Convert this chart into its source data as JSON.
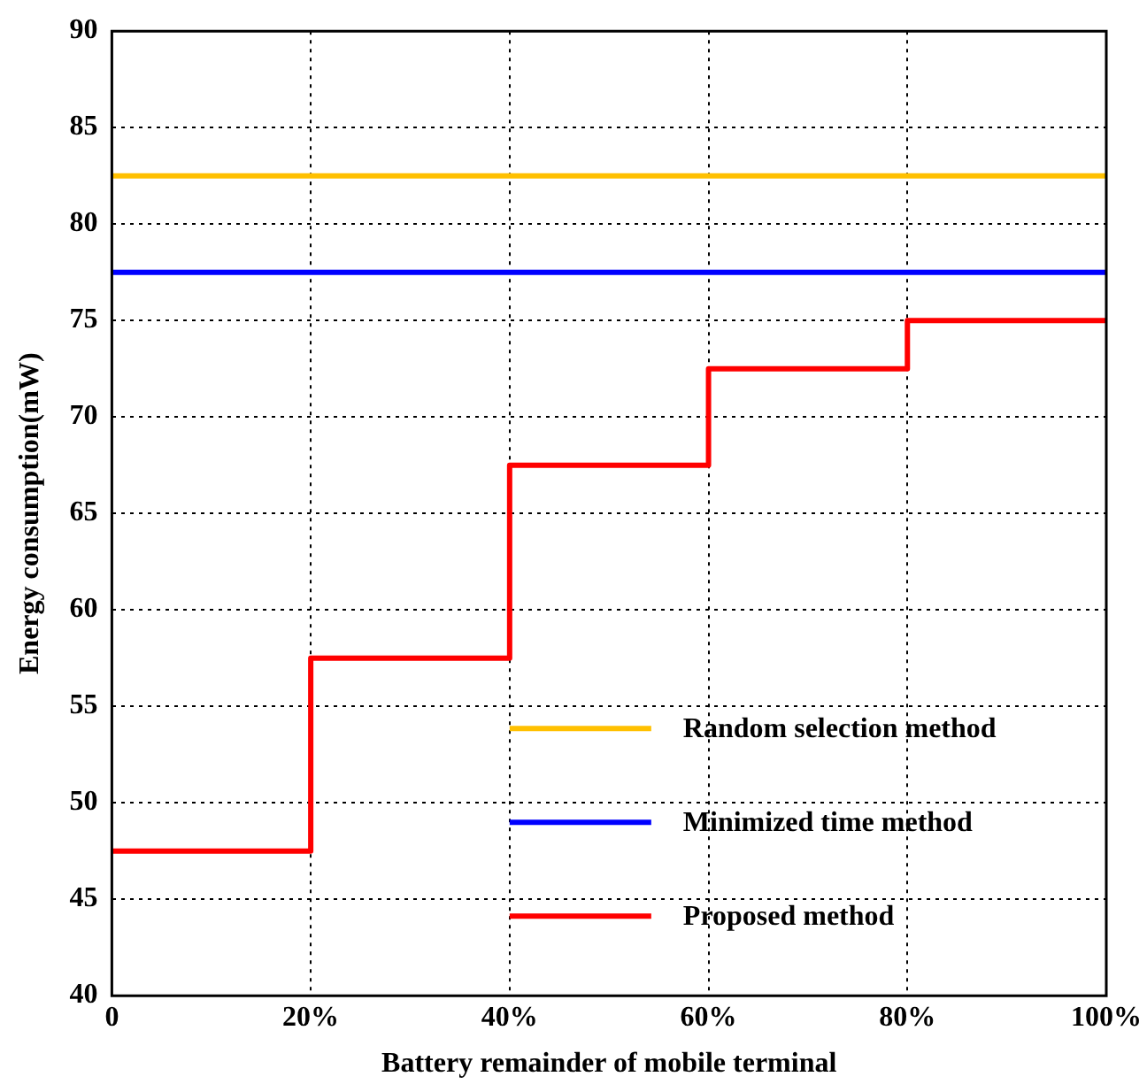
{
  "chart_data": {
    "type": "step",
    "xlabel": "Battery remainder of mobile terminal",
    "ylabel": "Energy consumption(mW)",
    "xlim": [
      0,
      100
    ],
    "xticks": [
      {
        "value": 0,
        "label": "0"
      },
      {
        "value": 20,
        "label": "20%"
      },
      {
        "value": 40,
        "label": "40%"
      },
      {
        "value": 60,
        "label": "60%"
      },
      {
        "value": 80,
        "label": "80%"
      },
      {
        "value": 100,
        "label": "100%"
      }
    ],
    "ylim": [
      40,
      90
    ],
    "yticks": [
      40,
      45,
      50,
      55,
      60,
      65,
      70,
      75,
      80,
      85,
      90
    ],
    "grid": true,
    "legend": "bottom right",
    "line_style": "solid",
    "marker": "none",
    "series": [
      {
        "name": "Random selection method",
        "color": "#ffc000",
        "type": "line",
        "x": [
          0,
          100
        ],
        "values": [
          82.5,
          82.5
        ]
      },
      {
        "name": "Minimized time method",
        "color": "#0000ff",
        "type": "line",
        "x": [
          0,
          100
        ],
        "values": [
          77.5,
          77.5
        ]
      },
      {
        "name": "Proposed method",
        "color": "#ff0000",
        "type": "step",
        "x": [
          0,
          20,
          40,
          60,
          80,
          100
        ],
        "values": [
          47.5,
          57.5,
          67.5,
          72.5,
          75,
          75
        ]
      }
    ]
  }
}
